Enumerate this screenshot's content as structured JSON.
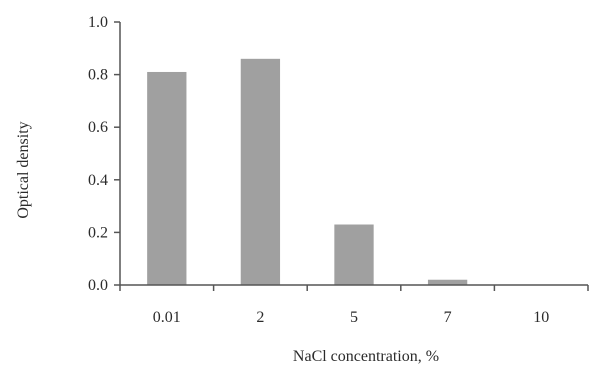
{
  "chart_data": {
    "type": "bar",
    "categories": [
      "0.01",
      "2",
      "5",
      "7",
      "10"
    ],
    "values": [
      0.81,
      0.86,
      0.23,
      0.02,
      0.0
    ],
    "xlabel": "NaCl concentration, %",
    "ylabel": "Optical density",
    "ylim": [
      0,
      1.0
    ],
    "yticks": [
      "0.0",
      "0.2",
      "0.4",
      "0.6",
      "0.8",
      "1.0"
    ],
    "grid": false,
    "bar_color": "#a0a0a0",
    "axis_color": "#555555"
  }
}
